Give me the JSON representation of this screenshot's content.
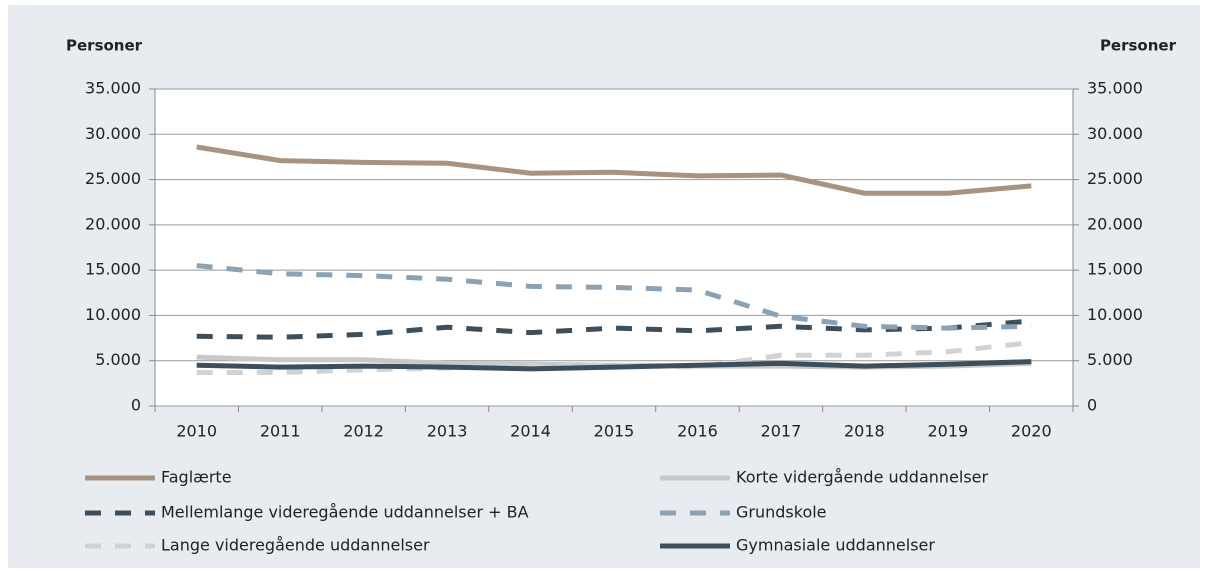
{
  "chart_data": {
    "type": "line",
    "y_label": "Personer",
    "y2_label": "Personer",
    "categories": [
      "2010",
      "2011",
      "2012",
      "2013",
      "2014",
      "2015",
      "2016",
      "2017",
      "2018",
      "2019",
      "2020"
    ],
    "series": [
      {
        "name": "Faglærte",
        "color": "#a89280",
        "dashed": false,
        "values": [
          28600,
          27100,
          26900,
          26800,
          25700,
          25800,
          25400,
          25500,
          23500,
          23500,
          24300
        ]
      },
      {
        "name": "Korte vidergående uddannelser",
        "color": "#c9c9c9",
        "dashed": false,
        "values": [
          5400,
          5100,
          5100,
          4700,
          4600,
          4500,
          4400,
          4400,
          4300,
          4400,
          4700
        ]
      },
      {
        "name": "Mellemlange videregående uddannelser + BA",
        "color": "#3d4f5c",
        "dashed": true,
        "values": [
          7700,
          7600,
          7900,
          8700,
          8100,
          8600,
          8300,
          8800,
          8400,
          8600,
          9400
        ]
      },
      {
        "name": "Grundskole",
        "color": "#8aa2b4",
        "dashed": true,
        "values": [
          15500,
          14600,
          14400,
          14000,
          13200,
          13100,
          12800,
          9900,
          8800,
          8600,
          8800
        ]
      },
      {
        "name": "Lange videregående uddannelser",
        "color": "#d2d2d2",
        "dashed": true,
        "values": [
          3700,
          3700,
          4000,
          4200,
          4400,
          4500,
          4300,
          5600,
          5600,
          6000,
          7000
        ]
      },
      {
        "name": "Gymnasiale uddannelser",
        "color": "#3d4f5c",
        "dashed": false,
        "values": [
          4500,
          4300,
          4400,
          4300,
          4100,
          4300,
          4500,
          4700,
          4400,
          4600,
          4900
        ]
      }
    ],
    "ylim": [
      0,
      35000
    ],
    "yticks": [
      0,
      {
        "value": 5000,
        "label": "5.000"
      },
      {
        "value": 10000,
        "label": "10.000"
      },
      {
        "value": 15000,
        "label": "15.000"
      },
      {
        "value": 20000,
        "label": "20.000"
      },
      {
        "value": 25000,
        "label": "25.000"
      },
      {
        "value": 30000,
        "label": "30.000"
      },
      {
        "value": 35000,
        "label": "35.000"
      }
    ],
    "y2lim": [
      0,
      35000
    ],
    "y2ticks": [
      0,
      {
        "value": 5000,
        "label": "5.000"
      },
      {
        "value": 10000,
        "label": "10.000"
      },
      {
        "value": 15000,
        "label": "15.000"
      },
      {
        "value": 20000,
        "label": "20.000"
      },
      {
        "value": 25000,
        "label": "25.000"
      },
      {
        "value": 30000,
        "label": "30.000"
      },
      {
        "value": 35000,
        "label": "35.000"
      }
    ],
    "grid": true
  }
}
